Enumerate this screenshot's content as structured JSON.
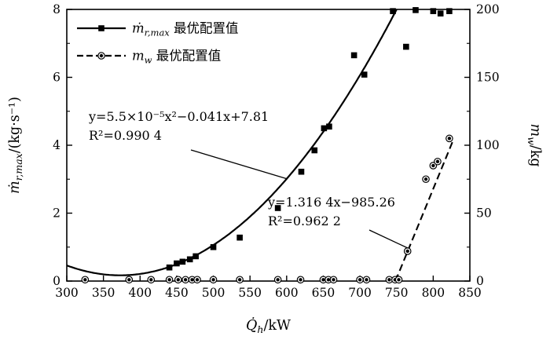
{
  "figure": {
    "background": "#ffffff",
    "foreground": "#000000"
  },
  "chart_data": {
    "type": "scatter",
    "title": "",
    "x_axis": {
      "label_main": "Q̇",
      "label_sub": "h",
      "label_rest": "/kW",
      "min": 300,
      "max": 850,
      "ticks": [
        300,
        350,
        400,
        450,
        500,
        550,
        600,
        650,
        700,
        750,
        800,
        850
      ]
    },
    "y_left": {
      "label_main": "ṁ",
      "label_sub": "r,max",
      "label_rest": "/(kg·s⁻¹)",
      "min": 0,
      "max": 8,
      "ticks": [
        0,
        2,
        4,
        6,
        8
      ],
      "minor_step": 1
    },
    "y_right": {
      "label_main": "m",
      "label_sub": "w",
      "label_rest": "/kg",
      "min": 0,
      "max": 200,
      "ticks": [
        0,
        50,
        100,
        150,
        200
      ],
      "minor_step": 25
    },
    "legend_position": "top-left-inside",
    "grid": false,
    "series": [
      {
        "id": "mr_max",
        "axis": "left",
        "marker": "square",
        "line": "solid",
        "legend_main": "ṁ",
        "legend_sub": "r,max",
        "legend_rest": " 最优配置值",
        "points": [
          [
            440,
            0.4
          ],
          [
            450,
            0.52
          ],
          [
            458,
            0.57
          ],
          [
            468,
            0.64
          ],
          [
            476,
            0.73
          ],
          [
            500,
            1.0
          ],
          [
            536,
            1.28
          ],
          [
            588,
            2.15
          ],
          [
            620,
            3.22
          ],
          [
            638,
            3.85
          ],
          [
            651,
            4.5
          ],
          [
            658,
            4.55
          ],
          [
            692,
            6.65
          ],
          [
            706,
            6.08
          ],
          [
            745,
            7.95
          ],
          [
            763,
            6.9
          ],
          [
            776,
            7.98
          ],
          [
            800,
            7.95
          ],
          [
            810,
            7.88
          ],
          [
            822,
            7.95
          ]
        ]
      },
      {
        "id": "mw",
        "axis": "right",
        "marker": "circle",
        "line": "dashed",
        "legend_main": "m",
        "legend_sub": "w",
        "legend_rest": " 最优配置值",
        "points": [
          [
            325,
            1
          ],
          [
            385,
            1
          ],
          [
            415,
            1
          ],
          [
            440,
            1
          ],
          [
            452,
            1
          ],
          [
            462,
            1
          ],
          [
            471,
            1
          ],
          [
            478,
            1
          ],
          [
            500,
            1
          ],
          [
            536,
            1
          ],
          [
            588,
            1
          ],
          [
            619,
            1
          ],
          [
            650,
            1
          ],
          [
            657,
            1
          ],
          [
            664,
            1
          ],
          [
            700,
            1
          ],
          [
            709,
            1
          ],
          [
            740,
            1
          ],
          [
            748,
            1
          ],
          [
            753,
            1
          ],
          [
            765,
            22
          ],
          [
            790,
            75
          ],
          [
            800,
            85
          ],
          [
            806,
            88
          ],
          [
            822,
            105
          ]
        ]
      }
    ],
    "fits": [
      {
        "series": "mr_max",
        "type": "quadratic",
        "a": 5.5e-05,
        "b": -0.041,
        "c": 7.81,
        "x_start": 300,
        "x_end": 751,
        "equation": "y=5.5×10⁻⁵x²−0.041x+7.81",
        "r2_label": "R²=0.990 4"
      },
      {
        "series": "mw",
        "type": "linear",
        "slope": 1.3164,
        "intercept": -985.26,
        "x_start": 748.5,
        "x_end": 828,
        "equation": "y=1.316 4x−985.26",
        "r2_label": "R²=0.962 2"
      }
    ]
  }
}
